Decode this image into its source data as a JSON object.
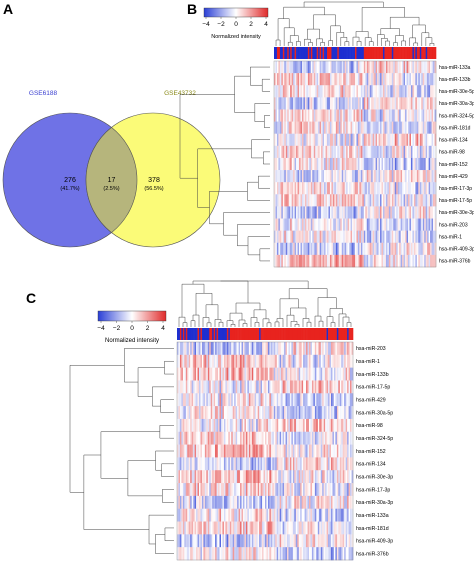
{
  "panels": {
    "a": {
      "letter": "A",
      "venn": {
        "left": {
          "name": "GSE6188",
          "count": "276",
          "pct": "(41.7%)",
          "color": "#6f72e6"
        },
        "right": {
          "name": "GSE43732",
          "count": "378",
          "pct": "(56.5%)",
          "color": "#fbfb78"
        },
        "overlap": {
          "count": "17",
          "pct": "(2.5%)",
          "color": "#b6b57c"
        }
      }
    },
    "b": {
      "letter": "B",
      "colorbar": {
        "ticks": [
          "−4",
          "−2",
          "0",
          "2",
          "4"
        ],
        "label": "Normalized intensity"
      },
      "rows": [
        "hsa-miR-133a",
        "hsa-miR-133b",
        "hsa-miR-30e-5p",
        "hsa-miR-30a-3p",
        "hsa-miR-324-5p",
        "hsa-miR-181d",
        "hsa-miR-134",
        "hsa-miR-98",
        "hsa-miR-152",
        "hsa-miR-429",
        "hsa-miR-17-3p",
        "hsa-miR-17-5p",
        "hsa-miR-30e-3p",
        "hsa-miR-203",
        "hsa-miR-1",
        "hsa-miR-409-3p",
        "hsa-miR-376b"
      ]
    },
    "c": {
      "letter": "C",
      "colorbar": {
        "ticks": [
          "−4",
          "−2",
          "0",
          "2",
          "4"
        ],
        "label": "Normalized intensity"
      },
      "rows": [
        "hsa-miR-203",
        "hsa-miR-1",
        "hsa-miR-133b",
        "hsa-miR-17-5p",
        "hsa-miR-429",
        "hsa-miR-30a-5p",
        "hsa-miR-98",
        "hsa-miR-324-5p",
        "hsa-miR-152",
        "hsa-miR-134",
        "hsa-miR-30e-3p",
        "hsa-miR-17-3p",
        "hsa-miR-30a-3p",
        "hsa-miR-133a",
        "hsa-miR-181d",
        "hsa-miR-409-3p",
        "hsa-miR-376b"
      ]
    }
  },
  "colors": {
    "low": "#2a3fd6",
    "mid": "#ffffff",
    "high": "#e02a2a",
    "groupRed": "#e8231e",
    "groupBlue": "#1d2fd0"
  }
}
